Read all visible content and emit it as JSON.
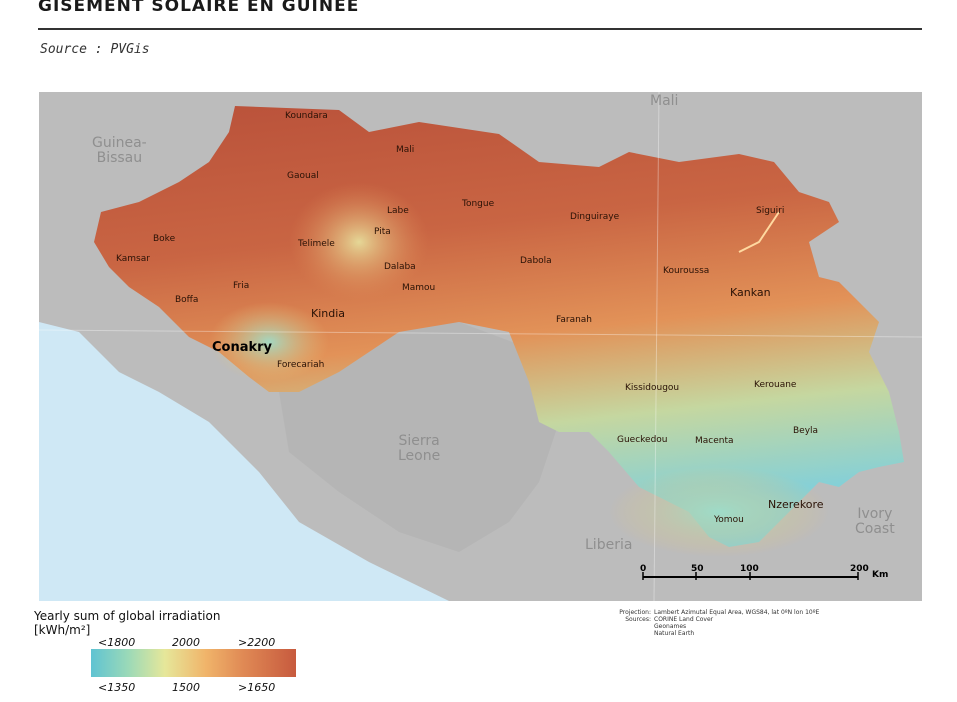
{
  "title": "GISEMENT SOLAIRE EN GUINEE",
  "source": "Source : PVGis",
  "countries": [
    {
      "id": "guinea-bissau",
      "label": "Guinea-\nBissau"
    },
    {
      "id": "mali",
      "label": "Mali"
    },
    {
      "id": "sierra-leone",
      "label": "Sierra\nLeone"
    },
    {
      "id": "liberia",
      "label": "Liberia"
    },
    {
      "id": "ivory-coast",
      "label": "Ivory\nCoast"
    }
  ],
  "cities": [
    "Koundara",
    "Mali",
    "Gaoual",
    "Labe",
    "Tongue",
    "Dinguiraye",
    "Siguiri",
    "Boke",
    "Telimele",
    "Pita",
    "Kamsar",
    "Dalaba",
    "Dabola",
    "Kouroussa",
    "Fria",
    "Mamou",
    "Kankan",
    "Boffa",
    "Kindia",
    "Faranah",
    "Conakry",
    "Forecariah",
    "Kissidougou",
    "Kerouane",
    "Gueckedou",
    "Macenta",
    "Beyla",
    "Nzerekore",
    "Yomou"
  ],
  "scale": {
    "ticks": [
      "0",
      "50",
      "100",
      "200"
    ],
    "unit": "Km"
  },
  "legend": {
    "title_line1": "Yearly sum of global irradiation",
    "title_line2": "[kWh/m²]",
    "top_ticks": [
      "<1800",
      "2000",
      ">2200"
    ],
    "bottom_ticks": [
      "<1350",
      "1500",
      ">1650"
    ]
  },
  "notes": {
    "projection_label": "Projection:",
    "projection_value": "Lambert Azimutal Equal Area, WGS84, lat 0ºN lon 10ºE",
    "sources_label": "Sources:",
    "sources": [
      "CORINE Land Cover",
      "Geonames",
      "Natural Earth"
    ]
  },
  "colors": {
    "sea": "#cfe8f5",
    "land": "#bcbcbc",
    "high": "#c75a3e",
    "mid": "#e79a5e",
    "low": "#7fcfd6"
  }
}
